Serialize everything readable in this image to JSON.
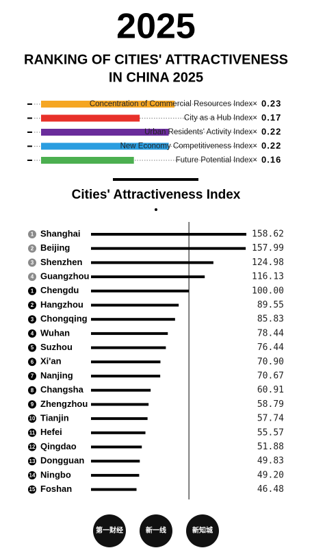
{
  "header": {
    "title": "2025",
    "subtitle": [
      "RANKING OF CITIES' ATTRACTIVENESS",
      "IN CHINA 2025"
    ]
  },
  "chart_data": [
    {
      "type": "bar",
      "categories": [
        "Concentration of Commercial Resources Index×",
        "City as a Hub Index×",
        "Urban Residents' Activity Index×",
        "New Economy Competitiveness Index×",
        "Future Potential Index×"
      ],
      "values": [
        0.23,
        0.17,
        0.22,
        0.22,
        0.16
      ],
      "colors": [
        "#f5a623",
        "#e8312a",
        "#6a2c9b",
        "#2a9de0",
        "#4caf50"
      ],
      "xlim": [
        0,
        0.25
      ]
    },
    {
      "type": "bar",
      "title": "Cities' Attractiveness Index",
      "ranks": [
        1,
        2,
        3,
        4,
        1,
        2,
        3,
        4,
        5,
        6,
        7,
        8,
        9,
        10,
        11,
        12,
        13,
        14,
        15
      ],
      "categories": [
        "Shanghai",
        "Beijing",
        "Shenzhen",
        "Guangzhou",
        "Chengdu",
        "Hangzhou",
        "Chongqing",
        "Wuhan",
        "Suzhou",
        "Xi'an",
        "Nanjing",
        "Changsha",
        "Zhengzhou",
        "Tianjin",
        "Hefei",
        "Qingdao",
        "Dongguan",
        "Ningbo",
        "Foshan"
      ],
      "values": [
        158.62,
        157.99,
        124.98,
        116.13,
        100.0,
        89.55,
        85.83,
        78.44,
        76.44,
        70.9,
        70.67,
        60.91,
        58.79,
        57.74,
        55.57,
        51.88,
        49.83,
        49.2,
        46.48
      ],
      "value_labels": [
        "158.62",
        "157.99",
        "124.98",
        "116.13",
        "100.00",
        "89.55",
        "85.83",
        "78.44",
        "76.44",
        "70.90",
        "70.67",
        "60.91",
        "58.79",
        "57.74",
        "55.57",
        "51.88",
        "49.83",
        "49.20",
        "46.48"
      ],
      "color": "#000000",
      "rank_colors": [
        "#8a8a8a",
        "#000000"
      ],
      "xlim": [
        0,
        160
      ],
      "reference_line": 100
    }
  ],
  "footer": {
    "logos": [
      "第一财经",
      "新一线",
      "新知城"
    ]
  }
}
